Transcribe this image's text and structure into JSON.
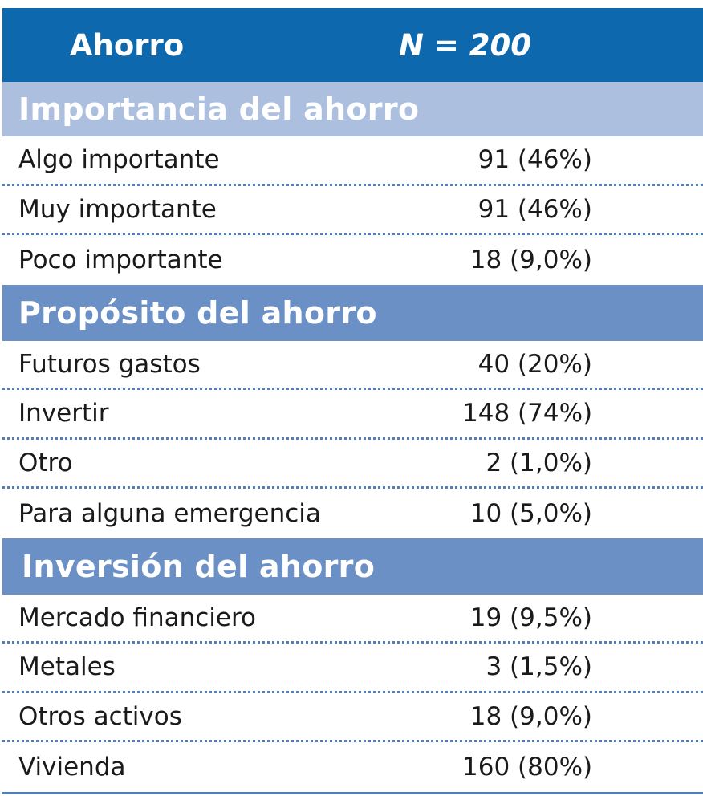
{
  "header": {
    "label": "Ahorro",
    "n": "N = 200"
  },
  "sections": [
    {
      "title": "Importancia del ahorro",
      "rows": [
        {
          "label": "Algo importante",
          "value": "91 (46%)"
        },
        {
          "label": "Muy importante",
          "value": "91 (46%)"
        },
        {
          "label": "Poco importante",
          "value": "18 (9,0%)"
        }
      ]
    },
    {
      "title": "Propósito del ahorro",
      "rows": [
        {
          "label": "Futuros gastos",
          "value": "40 (20%)"
        },
        {
          "label": "Invertir",
          "value": "148 (74%)"
        },
        {
          "label": "Otro",
          "value": "2 (1,0%)"
        },
        {
          "label": "Para alguna emergencia",
          "value": "10 (5,0%)"
        }
      ]
    },
    {
      "title": "Inversión del ahorro",
      "rows": [
        {
          "label": "Mercado financiero",
          "value": "19 (9,5%)"
        },
        {
          "label": "Metales",
          "value": "3 (1,5%)"
        },
        {
          "label": "Otros activos",
          "value": "18 (9,0%)"
        },
        {
          "label": "Vivienda",
          "value": "160 (80%)"
        }
      ]
    }
  ]
}
